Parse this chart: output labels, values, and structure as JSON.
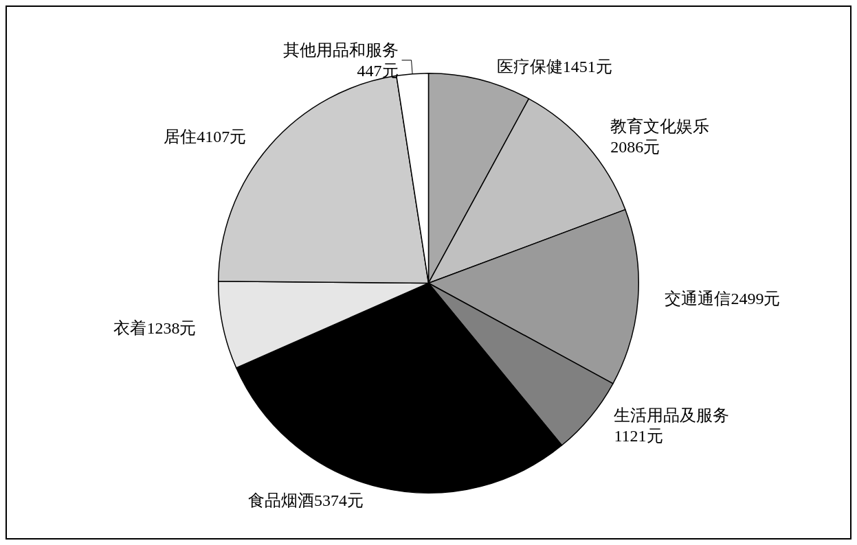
{
  "chart_data": {
    "type": "pie",
    "categories": [
      "医疗保健",
      "教育文化娱乐",
      "交通通信",
      "生活用品及服务",
      "食品烟酒",
      "衣着",
      "居住",
      "其他用品和服务"
    ],
    "values": [
      1451,
      2086,
      2499,
      1121,
      5374,
      1238,
      4107,
      447
    ],
    "value_labels": [
      "1451元",
      "2086元",
      "2499元",
      "1121元",
      "5374元",
      "1238元",
      "4107元",
      "447元"
    ],
    "colors": [
      "#a8a8a8",
      "#c0c0c0",
      "#9a9a9a",
      "#808080",
      "#000000",
      "#e6e6e6",
      "#cccccc",
      "#ffffff"
    ],
    "legend": false
  }
}
